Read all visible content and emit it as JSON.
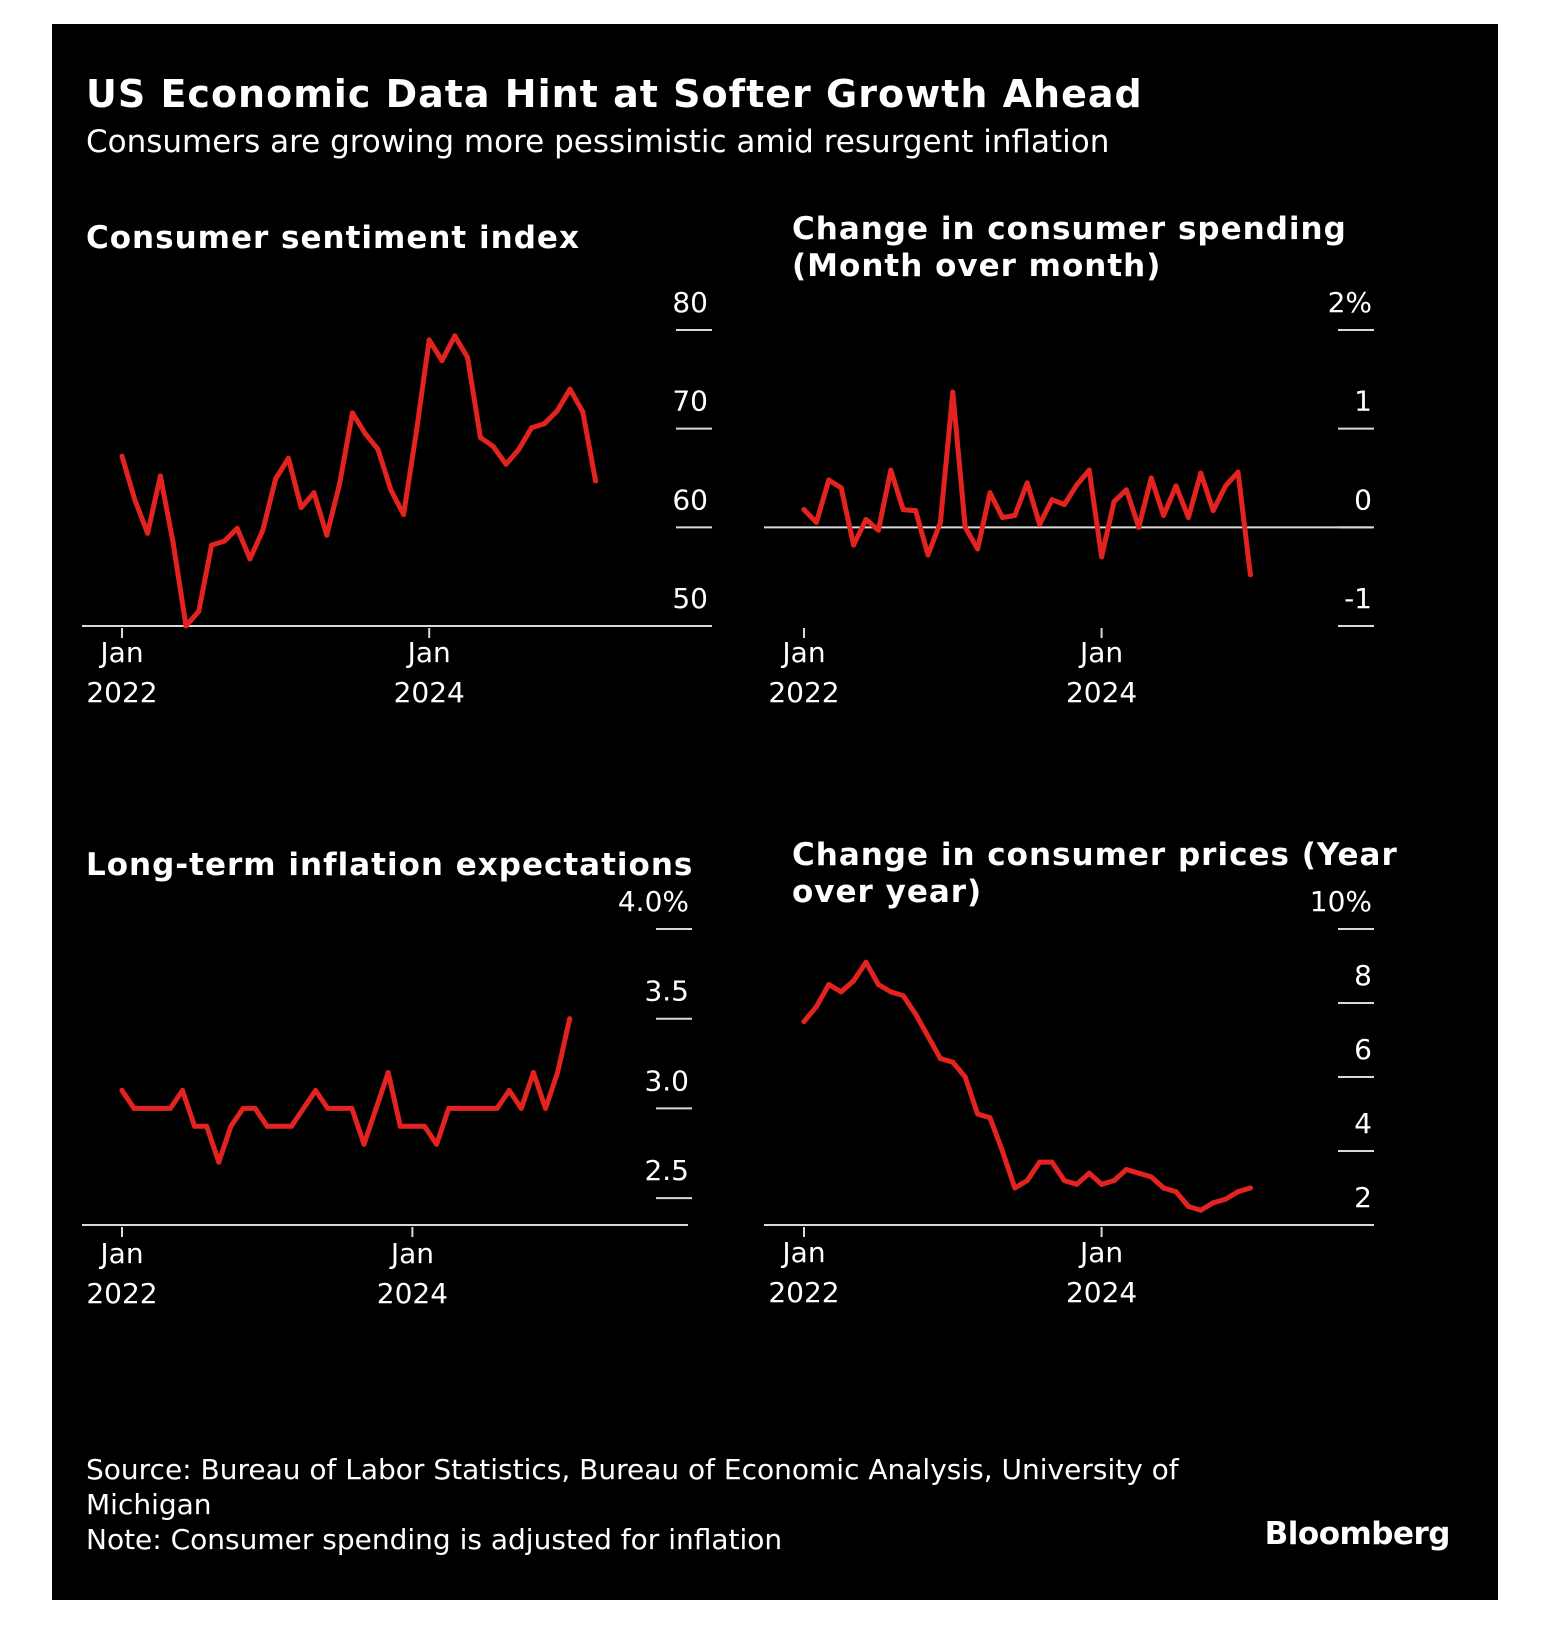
{
  "title": "US Economic Data Hint at Softer Growth Ahead",
  "subtitle": "Consumers are growing more pessimistic amid resurgent inflation",
  "source": "Source: Bureau of Labor Statistics, Bureau of Economic Analysis, University of Michigan",
  "note": "Note: Consumer spending is adjusted for inflation",
  "brand": "Bloomberg",
  "colors": {
    "background": "#000000",
    "line": "#e3231f",
    "axis": "#d9d9d9",
    "text": "#ffffff"
  },
  "chart_data": [
    {
      "type": "line",
      "title": "Consumer sentiment index",
      "x_start": "2022-01",
      "x_ticks": [
        {
          "line1": "Jan",
          "line2": "2022",
          "date": "2022-01"
        },
        {
          "line1": "Jan",
          "line2": "2024",
          "date": "2024-01"
        }
      ],
      "y_ticks": [
        {
          "label": "80",
          "value": 80
        },
        {
          "label": "70",
          "value": 70
        },
        {
          "label": "60",
          "value": 60
        },
        {
          "label": "50",
          "value": 50
        }
      ],
      "ylim": [
        50,
        80
      ],
      "baseline": 50,
      "values": [
        67.2,
        62.8,
        59.4,
        65.2,
        58.4,
        50.0,
        51.5,
        58.2,
        58.6,
        59.9,
        56.8,
        59.7,
        64.9,
        67.0,
        62.0,
        63.5,
        59.2,
        64.4,
        71.6,
        69.5,
        67.9,
        63.8,
        61.3,
        69.7,
        79.0,
        76.9,
        79.4,
        77.2,
        69.1,
        68.2,
        66.4,
        67.9,
        70.1,
        70.5,
        71.8,
        74.0,
        71.7,
        64.7
      ]
    },
    {
      "type": "line",
      "title": "Change in consumer spending (Month over month)",
      "x_start": "2022-01",
      "x_ticks": [
        {
          "line1": "Jan",
          "line2": "2022",
          "date": "2022-01"
        },
        {
          "line1": "Jan",
          "line2": "2024",
          "date": "2024-01"
        }
      ],
      "y_ticks": [
        {
          "label": "2%",
          "value": 2
        },
        {
          "label": "1",
          "value": 1
        },
        {
          "label": "0",
          "value": 0
        },
        {
          "label": "-1",
          "value": -1
        }
      ],
      "ylim": [
        -1,
        2
      ],
      "baseline": 0,
      "values": [
        0.18,
        0.05,
        0.48,
        0.4,
        -0.18,
        0.08,
        -0.03,
        0.58,
        0.18,
        0.17,
        -0.28,
        0.05,
        1.37,
        0.0,
        -0.22,
        0.35,
        0.1,
        0.12,
        0.45,
        0.03,
        0.28,
        0.23,
        0.43,
        0.58,
        -0.3,
        0.26,
        0.38,
        0.0,
        0.5,
        0.12,
        0.42,
        0.1,
        0.55,
        0.17,
        0.42,
        0.56,
        -0.48
      ]
    },
    {
      "type": "line",
      "title": "Long-term inflation expectations",
      "x_start": "2022-01",
      "x_ticks": [
        {
          "line1": "Jan",
          "line2": "2022",
          "date": "2022-01"
        },
        {
          "line1": "Jan",
          "line2": "2024",
          "date": "2024-01"
        }
      ],
      "y_ticks": [
        {
          "label": "4.0%",
          "value": 4.0
        },
        {
          "label": "3.5",
          "value": 3.5
        },
        {
          "label": "3.0",
          "value": 3.0
        },
        {
          "label": "2.5",
          "value": 2.5
        }
      ],
      "ylim": [
        2.35,
        4.0
      ],
      "baseline": 2.35,
      "values": [
        3.1,
        3.0,
        3.0,
        3.0,
        3.0,
        3.1,
        2.9,
        2.9,
        2.7,
        2.9,
        3.0,
        3.0,
        2.9,
        2.9,
        2.9,
        3.0,
        3.1,
        3.0,
        3.0,
        3.0,
        2.8,
        3.0,
        3.2,
        2.9,
        2.9,
        2.9,
        2.8,
        3.0,
        3.0,
        3.0,
        3.0,
        3.0,
        3.1,
        3.0,
        3.2,
        3.0,
        3.2,
        3.5
      ]
    },
    {
      "type": "line",
      "title": "Change in consumer prices (Year over year)",
      "x_start": "2022-01",
      "x_ticks": [
        {
          "line1": "Jan",
          "line2": "2022",
          "date": "2022-01"
        },
        {
          "line1": "Jan",
          "line2": "2024",
          "date": "2024-01"
        }
      ],
      "y_ticks": [
        {
          "label": "10%",
          "value": 10
        },
        {
          "label": "8",
          "value": 8
        },
        {
          "label": "6",
          "value": 6
        },
        {
          "label": "4",
          "value": 4
        },
        {
          "label": "2",
          "value": 2
        }
      ],
      "ylim": [
        2,
        10
      ],
      "baseline": 2,
      "values": [
        7.5,
        7.9,
        8.5,
        8.3,
        8.6,
        9.1,
        8.5,
        8.3,
        8.2,
        7.7,
        7.1,
        6.5,
        6.4,
        6.0,
        5.0,
        4.9,
        4.0,
        3.0,
        3.2,
        3.7,
        3.7,
        3.2,
        3.1,
        3.4,
        3.1,
        3.2,
        3.5,
        3.4,
        3.3,
        3.0,
        2.9,
        2.5,
        2.4,
        2.6,
        2.7,
        2.9,
        3.0
      ]
    }
  ]
}
